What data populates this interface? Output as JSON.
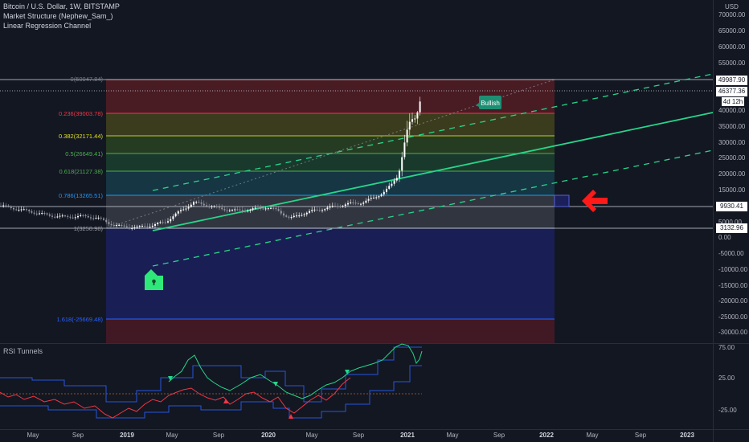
{
  "header": {
    "title": "Bitcoin / U.S. Dollar, 1W, BITSTAMP",
    "indicator_1": "Market Structure (Nephew_Sam_)",
    "indicator_2": "Linear Regression Channel"
  },
  "price_axis": {
    "currency": "USD",
    "ticks": [
      "70000.00",
      "65000.00",
      "60000.00",
      "55000.00",
      "50000.00",
      "45000.00",
      "40000.00",
      "35000.00",
      "30000.00",
      "25000.00",
      "20000.00",
      "15000.00",
      "10000.00",
      "5000.00",
      "0.00",
      "-5000.00",
      "-10000.00",
      "-15000.00",
      "-20000.00",
      "-25000.00",
      "-30000.00"
    ],
    "badges": {
      "fib_top": "49987.90",
      "last_price": "46377.36",
      "countdown": "4d 12h",
      "level_mid": "9930.41",
      "fib_bottom": "3132.96"
    }
  },
  "fib_levels": [
    {
      "label": "0(50047.84)",
      "color": "#787b86"
    },
    {
      "label": "0.236(39003.78)",
      "color": "#f23645"
    },
    {
      "label": "0.382(32171.44)",
      "color": "#e0e020"
    },
    {
      "label": "0.5(26649.41)",
      "color": "#4caf50"
    },
    {
      "label": "0.618(21127.38)",
      "color": "#4caf50"
    },
    {
      "label": "0.786(13265.51)",
      "color": "#2196f3"
    },
    {
      "label": "1(3250.98)",
      "color": "#787b86"
    },
    {
      "label": "1.618(-25669.48)",
      "color": "#2962ff"
    }
  ],
  "labels": {
    "bullish": "Bullish"
  },
  "rsi_panel": {
    "title": "RSI Tunnels",
    "ticks": [
      "75.00",
      "25.00",
      "-25.00"
    ]
  },
  "time_axis": {
    "ticks": [
      "May",
      "Sep",
      "2019",
      "May",
      "Sep",
      "2020",
      "May",
      "Sep",
      "2021",
      "May",
      "Sep",
      "2022",
      "May",
      "Sep",
      "2023"
    ]
  },
  "colors": {
    "background": "#131722",
    "regression_line": "#26d68a",
    "arrow": "#ff1a1a",
    "bullish_badge": "#1e8e73",
    "lock_marker": "#2ee87a"
  }
}
